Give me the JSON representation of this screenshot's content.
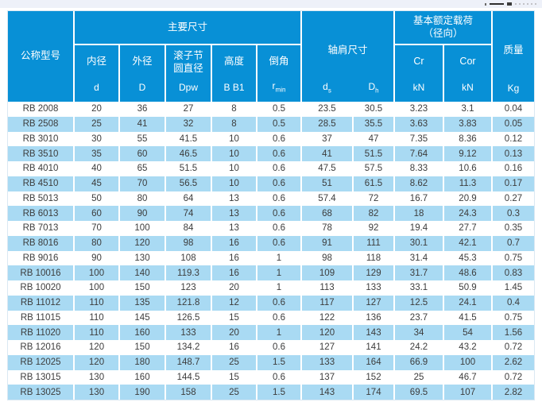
{
  "decor": {
    "top_strip_color": "#eef1f9",
    "cropped_marks": [
      "dot",
      "dash",
      "square",
      "dotted-row"
    ]
  },
  "table": {
    "accent_color": "#0890d6",
    "alt_row_color": "#a9daf3",
    "header": {
      "model": "公称型号",
      "groups": {
        "main_dims": "主要尺寸",
        "shoulder": "轴肩尺寸",
        "load_line1": "基本额定载荷",
        "load_line2": "（径向）",
        "mass": "质量"
      },
      "cols": {
        "d": {
          "name": "内径",
          "symbol": "d"
        },
        "D": {
          "name": "外径",
          "symbol": "D"
        },
        "Dpw": {
          "name1": "滚子节",
          "name2": "圆直径",
          "symbol": "Dpw"
        },
        "B": {
          "name": "高度",
          "symbol": "B B1"
        },
        "r": {
          "name": "倒角",
          "symbol_base": "r",
          "symbol_sub": "min"
        },
        "ds": {
          "base": "d",
          "sub": "s"
        },
        "Dh": {
          "base": "D",
          "sub": "h"
        },
        "Cr": {
          "name": "Cr",
          "unit": "kN"
        },
        "Cor": {
          "name": "Cor",
          "unit": "kN"
        },
        "Kg": {
          "unit": "Kg"
        }
      }
    },
    "col_keys": [
      "model",
      "d",
      "D",
      "Dpw",
      "B",
      "rmin",
      "ds",
      "Dh",
      "Cr",
      "Cor",
      "Kg"
    ],
    "rows": [
      [
        "RB 2008",
        "20",
        "36",
        "27",
        "8",
        "0.5",
        "23.5",
        "30.5",
        "3.23",
        "3.1",
        "0.04"
      ],
      [
        "RB 2508",
        "25",
        "41",
        "32",
        "8",
        "0.5",
        "28.5",
        "35.5",
        "3.63",
        "3.83",
        "0.05"
      ],
      [
        "RB 3010",
        "30",
        "55",
        "41.5",
        "10",
        "0.6",
        "37",
        "47",
        "7.35",
        "8.36",
        "0.12"
      ],
      [
        "RB 3510",
        "35",
        "60",
        "46.5",
        "10",
        "0.6",
        "41",
        "51.5",
        "7.64",
        "9.12",
        "0.13"
      ],
      [
        "RB 4010",
        "40",
        "65",
        "51.5",
        "10",
        "0.6",
        "47.5",
        "57.5",
        "8.33",
        "10.6",
        "0.16"
      ],
      [
        "RB 4510",
        "45",
        "70",
        "56.5",
        "10",
        "0.6",
        "51",
        "61.5",
        "8.62",
        "11.3",
        "0.17"
      ],
      [
        "RB 5013",
        "50",
        "80",
        "64",
        "13",
        "0.6",
        "57.4",
        "72",
        "16.7",
        "20.9",
        "0.27"
      ],
      [
        "RB 6013",
        "60",
        "90",
        "74",
        "13",
        "0.6",
        "68",
        "82",
        "18",
        "24.3",
        "0.3"
      ],
      [
        "RB 7013",
        "70",
        "100",
        "84",
        "13",
        "0.6",
        "78",
        "92",
        "19.4",
        "27.7",
        "0.35"
      ],
      [
        "RB 8016",
        "80",
        "120",
        "98",
        "16",
        "0.6",
        "91",
        "111",
        "30.1",
        "42.1",
        "0.7"
      ],
      [
        "RB 9016",
        "90",
        "130",
        "108",
        "16",
        "1",
        "98",
        "118",
        "31.4",
        "45.3",
        "0.75"
      ],
      [
        "RB 10016",
        "100",
        "140",
        "119.3",
        "16",
        "1",
        "109",
        "129",
        "31.7",
        "48.6",
        "0.83"
      ],
      [
        "RB 10020",
        "100",
        "150",
        "123",
        "20",
        "1",
        "113",
        "133",
        "33.1",
        "50.9",
        "1.45"
      ],
      [
        "RB 11012",
        "110",
        "135",
        "121.8",
        "12",
        "0.6",
        "117",
        "127",
        "12.5",
        "24.1",
        "0.4"
      ],
      [
        "RB 11015",
        "110",
        "145",
        "126.5",
        "15",
        "0.6",
        "122",
        "136",
        "23.7",
        "41.5",
        "0.75"
      ],
      [
        "RB 11020",
        "110",
        "160",
        "133",
        "20",
        "1",
        "120",
        "143",
        "34",
        "54",
        "1.56"
      ],
      [
        "RB 12016",
        "120",
        "150",
        "134.2",
        "16",
        "0.6",
        "127",
        "141",
        "24.2",
        "43.2",
        "0.72"
      ],
      [
        "RB 12025",
        "120",
        "180",
        "148.7",
        "25",
        "1.5",
        "133",
        "164",
        "66.9",
        "100",
        "2.62"
      ],
      [
        "RB 13015",
        "130",
        "160",
        "144.5",
        "15",
        "0.6",
        "137",
        "152",
        "25",
        "46.7",
        "0.72"
      ],
      [
        "RB 13025",
        "130",
        "190",
        "158",
        "25",
        "1.5",
        "143",
        "174",
        "69.5",
        "107",
        "2.82"
      ]
    ]
  }
}
